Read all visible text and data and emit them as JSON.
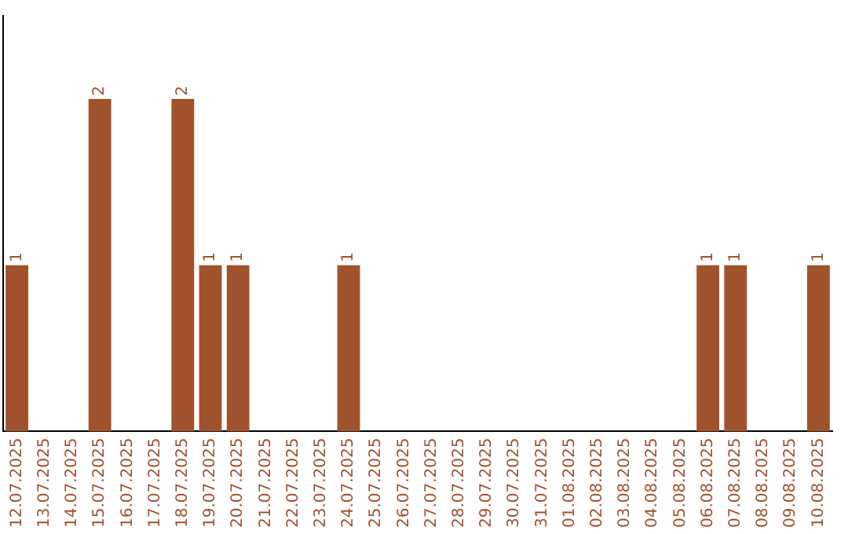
{
  "chart_data": {
    "type": "bar",
    "categories": [
      "12.07.2025",
      "13.07.2025",
      "14.07.2025",
      "15.07.2025",
      "16.07.2025",
      "17.07.2025",
      "18.07.2025",
      "19.07.2025",
      "20.07.2025",
      "21.07.2025",
      "22.07.2025",
      "23.07.2025",
      "24.07.2025",
      "25.07.2025",
      "26.07.2025",
      "27.07.2025",
      "28.07.2025",
      "29.07.2025",
      "30.07.2025",
      "31.07.2025",
      "01.08.2025",
      "02.08.2025",
      "03.08.2025",
      "04.08.2025",
      "05.08.2025",
      "06.08.2025",
      "07.08.2025",
      "08.08.2025",
      "09.08.2025",
      "10.08.2025"
    ],
    "values": [
      1,
      0,
      0,
      2,
      0,
      0,
      2,
      1,
      1,
      0,
      0,
      0,
      1,
      0,
      0,
      0,
      0,
      0,
      0,
      0,
      0,
      0,
      0,
      0,
      0,
      1,
      1,
      0,
      0,
      1
    ],
    "value_labels": [
      "1",
      null,
      null,
      "2",
      null,
      null,
      "2",
      "1",
      "1",
      null,
      null,
      null,
      "1",
      null,
      null,
      null,
      null,
      null,
      null,
      null,
      null,
      null,
      null,
      null,
      null,
      "1",
      "1",
      null,
      null,
      "1"
    ],
    "color": "#a0522d",
    "grid": false,
    "legend": false,
    "tick_labels": "x"
  }
}
